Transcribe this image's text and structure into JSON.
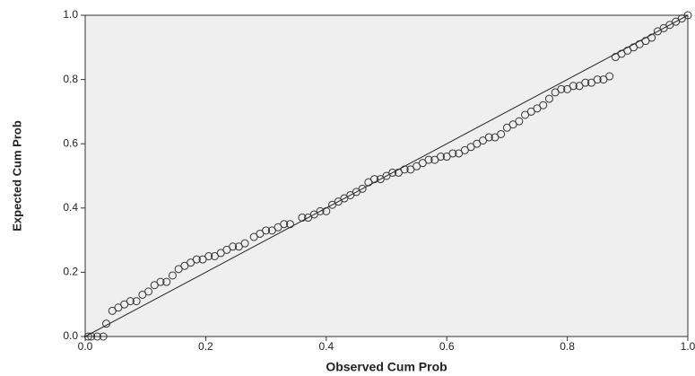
{
  "chart_data": {
    "type": "scatter",
    "x_label": "Observed Cum Prob",
    "y_label": "Expected Cum Prob",
    "xlim": [
      0,
      1
    ],
    "ylim": [
      0,
      1
    ],
    "xticks": [
      {
        "value": 0,
        "label": "0.0"
      },
      {
        "value": 0.2,
        "label": "0.2"
      },
      {
        "value": 0.4,
        "label": "0.4"
      },
      {
        "value": 0.6,
        "label": "0.6"
      },
      {
        "value": 0.8,
        "label": "0.8"
      },
      {
        "value": 1,
        "label": "1.0"
      }
    ],
    "yticks": [
      {
        "value": 0,
        "label": "0.0"
      },
      {
        "value": 0.2,
        "label": "0.2"
      },
      {
        "value": 0.4,
        "label": "0.4"
      },
      {
        "value": 0.6,
        "label": "0.6"
      },
      {
        "value": 0.8,
        "label": "0.8"
      },
      {
        "value": 1,
        "label": "1.0"
      }
    ],
    "reference_line": true,
    "color": "#333333",
    "x": [
      0.005,
      0.01,
      0.02,
      0.03,
      0.035,
      0.045,
      0.055,
      0.065,
      0.075,
      0.085,
      0.095,
      0.105,
      0.115,
      0.125,
      0.135,
      0.145,
      0.155,
      0.165,
      0.175,
      0.185,
      0.195,
      0.205,
      0.215,
      0.225,
      0.235,
      0.245,
      0.255,
      0.265,
      0.28,
      0.29,
      0.3,
      0.31,
      0.32,
      0.33,
      0.34,
      0.36,
      0.37,
      0.38,
      0.39,
      0.4,
      0.41,
      0.42,
      0.43,
      0.44,
      0.45,
      0.46,
      0.47,
      0.48,
      0.49,
      0.5,
      0.51,
      0.52,
      0.53,
      0.54,
      0.55,
      0.56,
      0.57,
      0.58,
      0.59,
      0.6,
      0.61,
      0.62,
      0.63,
      0.64,
      0.65,
      0.66,
      0.67,
      0.68,
      0.69,
      0.7,
      0.71,
      0.72,
      0.73,
      0.74,
      0.75,
      0.76,
      0.77,
      0.78,
      0.79,
      0.8,
      0.81,
      0.82,
      0.83,
      0.84,
      0.85,
      0.86,
      0.87,
      0.88,
      0.89,
      0.9,
      0.91,
      0.92,
      0.93,
      0.94,
      0.95,
      0.96,
      0.97,
      0.98,
      0.99,
      1
    ],
    "values": [
      0,
      0,
      0,
      0,
      0.04,
      0.08,
      0.09,
      0.1,
      0.11,
      0.11,
      0.13,
      0.14,
      0.16,
      0.17,
      0.17,
      0.19,
      0.21,
      0.22,
      0.23,
      0.24,
      0.24,
      0.25,
      0.25,
      0.26,
      0.27,
      0.28,
      0.28,
      0.29,
      0.31,
      0.32,
      0.33,
      0.33,
      0.34,
      0.35,
      0.35,
      0.37,
      0.37,
      0.38,
      0.39,
      0.39,
      0.41,
      0.42,
      0.43,
      0.44,
      0.45,
      0.46,
      0.48,
      0.49,
      0.49,
      0.5,
      0.51,
      0.51,
      0.52,
      0.52,
      0.53,
      0.54,
      0.55,
      0.55,
      0.56,
      0.56,
      0.57,
      0.57,
      0.58,
      0.59,
      0.6,
      0.61,
      0.62,
      0.62,
      0.63,
      0.65,
      0.66,
      0.67,
      0.69,
      0.7,
      0.71,
      0.72,
      0.74,
      0.76,
      0.77,
      0.77,
      0.78,
      0.78,
      0.79,
      0.79,
      0.8,
      0.8,
      0.81,
      0.87,
      0.88,
      0.89,
      0.9,
      0.91,
      0.92,
      0.93,
      0.95,
      0.96,
      0.97,
      0.98,
      0.99,
      1
    ]
  }
}
